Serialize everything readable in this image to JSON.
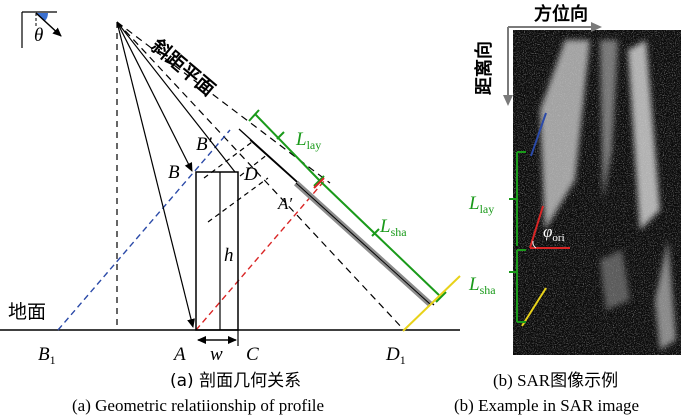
{
  "left_panel": {
    "angle_symbol": "θ",
    "slant_plane_label": "斜距平面",
    "ground_label": "地面",
    "point_labels": {
      "B_prime": "B′",
      "B": "B",
      "D": "D",
      "A_prime": "A′",
      "h": "h",
      "B1_main": "B",
      "B1_sub": "1",
      "A": "A",
      "w": "w",
      "C": "C",
      "D1_main": "D",
      "D1_sub": "1"
    },
    "L_lay": {
      "main": "L",
      "sub": "lay"
    },
    "L_sha": {
      "main": "L",
      "sub": "sha"
    },
    "caption_cn": "(a) 剖面几何关系",
    "caption_en": "(a) Geometric relatiionship of profile"
  },
  "right_panel": {
    "azimuth_label": "方位向",
    "range_label": "距离向",
    "L_lay": {
      "main": "L",
      "sub": "lay"
    },
    "L_sha": {
      "main": "L",
      "sub": "sha"
    },
    "phi": {
      "main": "φ",
      "sub": "ori"
    },
    "caption_cn": "(b) SAR图像示例",
    "caption_en": "(b) Example in SAR image"
  },
  "colors": {
    "green": "#1a9a1a",
    "blue_dashed": "#2b4aa8",
    "red_dashed": "#d92626",
    "yellow": "#e8d21a",
    "building": "#8c8c8c"
  }
}
